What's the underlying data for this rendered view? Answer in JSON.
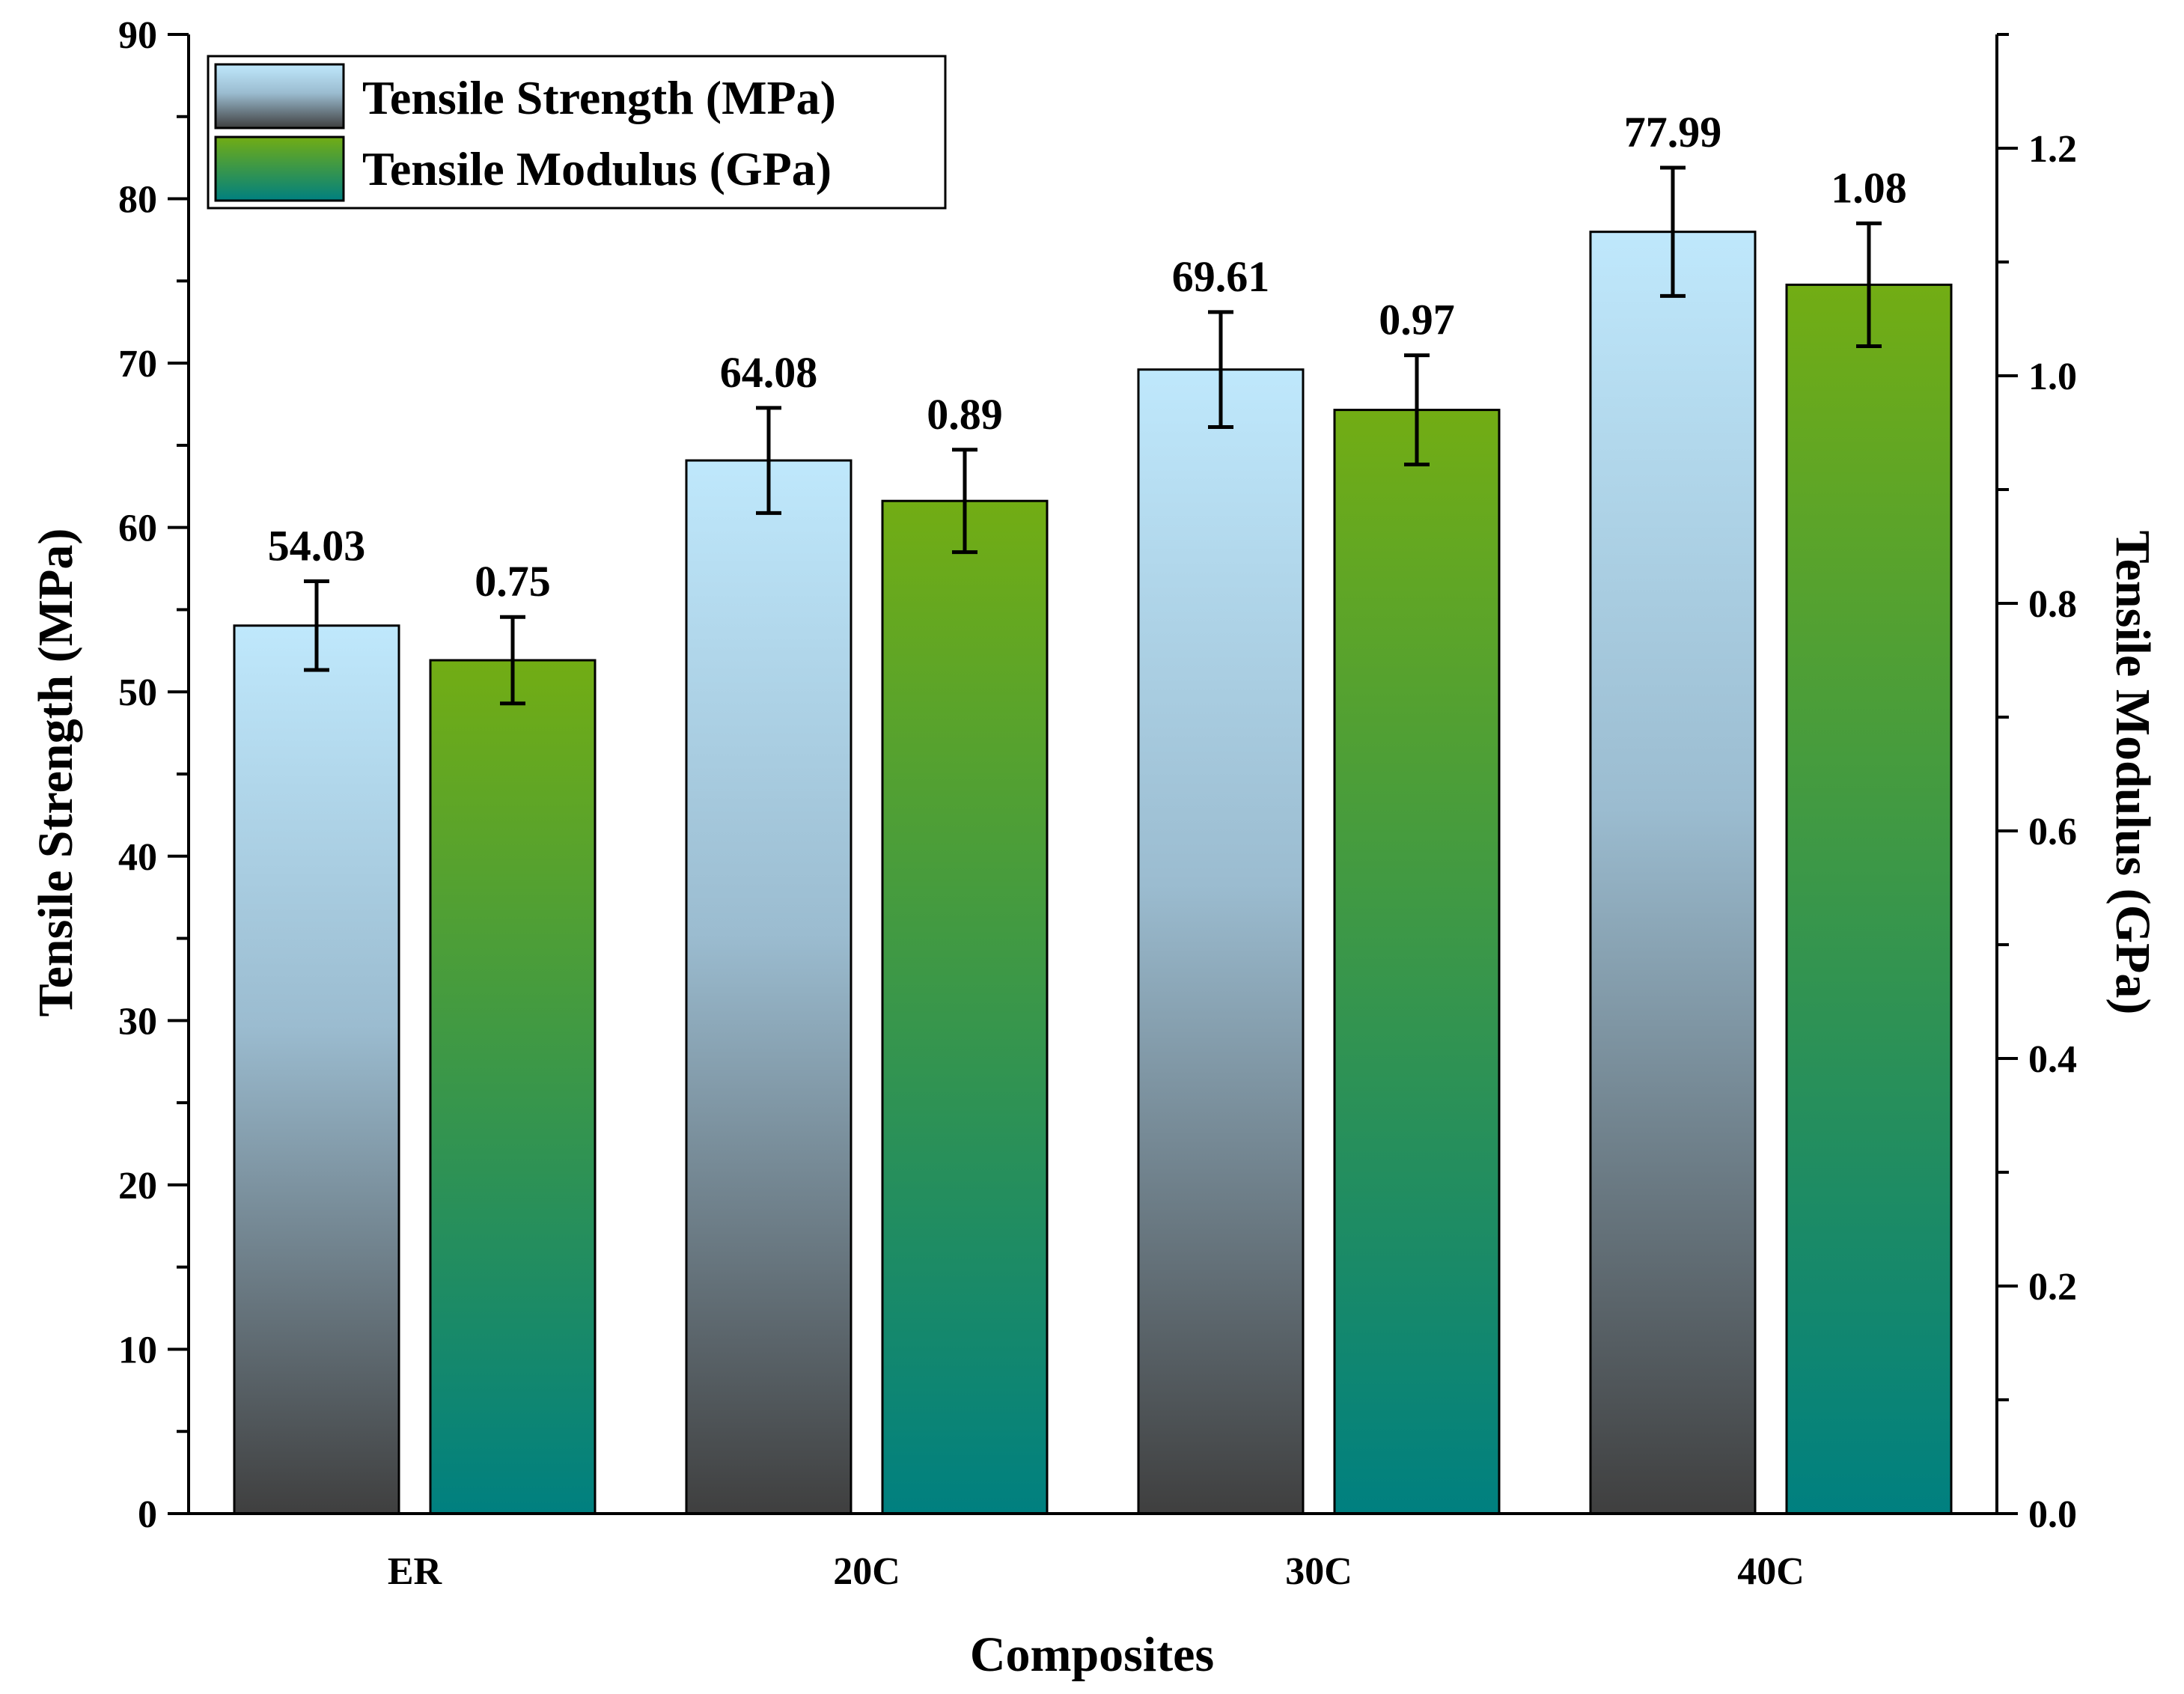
{
  "chart_data": {
    "type": "bar",
    "categories": [
      "ER",
      "20C",
      "30C",
      "40C"
    ],
    "xlabel": "Composites",
    "ylabel": "Tensile Strength (MPa)",
    "y2label": "Tensile Modulus (GPa)",
    "ylim": [
      0,
      90
    ],
    "y2lim": [
      0,
      1.3
    ],
    "yticks": [
      0,
      10,
      20,
      30,
      40,
      50,
      60,
      70,
      80,
      90
    ],
    "y2ticks": [
      0.0,
      0.2,
      0.4,
      0.6,
      0.8,
      1.0,
      1.2
    ],
    "y2tick_labels": [
      "0.0",
      "0.2",
      "0.4",
      "0.6",
      "0.8",
      "1.0",
      "1.2"
    ],
    "legend_position": "top-left",
    "grid": false,
    "series": [
      {
        "name": "Tensile Strength (MPa)",
        "axis": "left",
        "values": [
          54.03,
          64.08,
          69.61,
          77.99
        ],
        "labels": [
          "54.03",
          "64.08",
          "69.61",
          "77.99"
        ],
        "errors": [
          2.7,
          3.2,
          3.5,
          3.9
        ],
        "color_top": "#bfe8fc",
        "color_bottom": "#3f3f3f"
      },
      {
        "name": "Tensile Modulus (GPa)",
        "axis": "right",
        "values": [
          0.75,
          0.89,
          0.97,
          1.08
        ],
        "labels": [
          "0.75",
          "0.89",
          "0.97",
          "1.08"
        ],
        "errors": [
          0.038,
          0.045,
          0.048,
          0.054
        ],
        "color_top": "#72ad14",
        "color_bottom": "#008080"
      }
    ]
  }
}
